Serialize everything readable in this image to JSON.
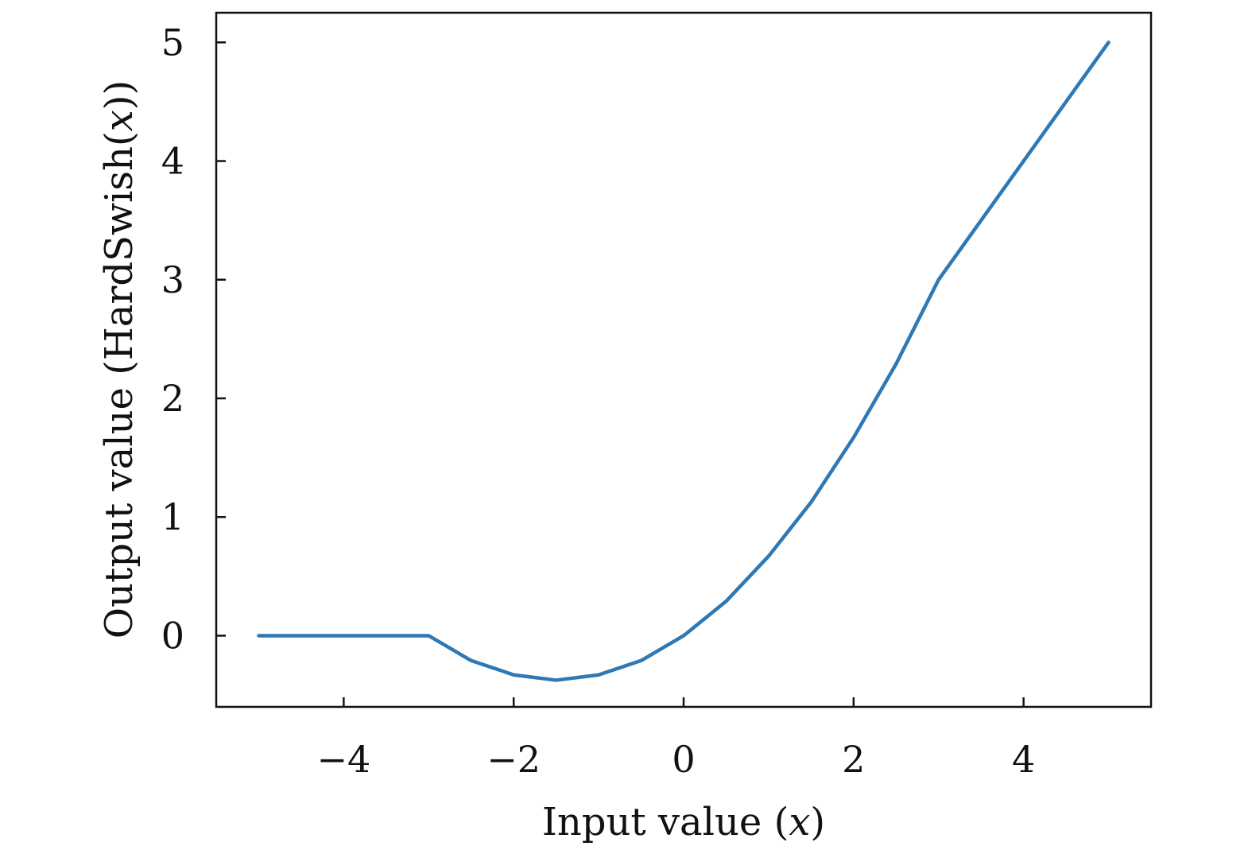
{
  "chart_data": {
    "type": "line",
    "title": "",
    "xlabel": {
      "prefix": "Input value (",
      "var": "x",
      "suffix": ")"
    },
    "ylabel": {
      "prefix": "Output value (HardSwish(",
      "var": "x",
      "suffix": "))"
    },
    "xlim": [
      -5.5,
      5.5
    ],
    "ylim": [
      -0.6,
      5.25
    ],
    "x_ticks": [
      -4,
      -2,
      0,
      2,
      4
    ],
    "x_tick_labels": [
      "−4",
      "−2",
      "0",
      "2",
      "4"
    ],
    "y_ticks": [
      0,
      1,
      2,
      3,
      4,
      5
    ],
    "y_tick_labels": [
      "0",
      "1",
      "2",
      "3",
      "4",
      "5"
    ],
    "grid": false,
    "legend": "none",
    "series": [
      {
        "color": "#2f78b4",
        "x": [
          -5,
          -4,
          -3,
          -2.5,
          -2,
          -1.5,
          -1,
          -0.5,
          0,
          0.5,
          1,
          1.5,
          2,
          2.5,
          3,
          3.5,
          4,
          4.5,
          5
        ],
        "y": [
          0,
          0,
          0,
          -0.21,
          -0.33,
          -0.375,
          -0.33,
          -0.21,
          0,
          0.29,
          0.67,
          1.125,
          1.67,
          2.29,
          3,
          3.5,
          4,
          4.5,
          5
        ]
      }
    ]
  }
}
